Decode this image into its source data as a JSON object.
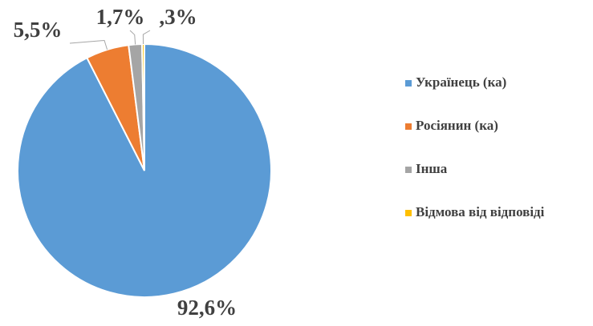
{
  "chart_data": {
    "type": "pie",
    "categories": [
      "Українець (ка)",
      "Росіянин (ка)",
      "Інша",
      "Відмова від відповіді"
    ],
    "values": [
      92.6,
      5.5,
      1.7,
      0.3
    ],
    "value_labels": [
      "92,6%",
      "5,5%",
      "1,7%",
      ",3%"
    ],
    "colors": [
      "#5b9bd5",
      "#ed7d31",
      "#a5a5a5",
      "#ffc000"
    ],
    "legend": "right"
  }
}
